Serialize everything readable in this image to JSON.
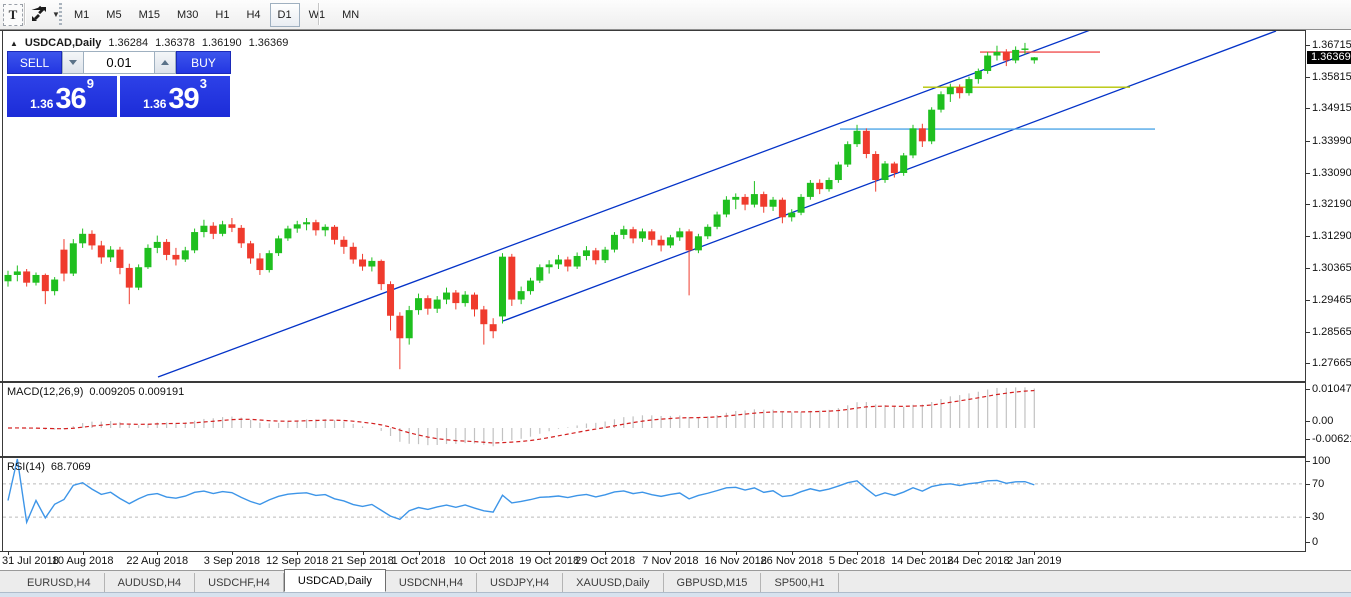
{
  "toolbar": {
    "text_tool_label": "T",
    "caret": "▼",
    "timeframes": [
      {
        "label": "M1",
        "active": false
      },
      {
        "label": "M5",
        "active": false
      },
      {
        "label": "M15",
        "active": false
      },
      {
        "label": "M30",
        "active": false
      },
      {
        "label": "H1",
        "active": false
      },
      {
        "label": "H4",
        "active": false
      },
      {
        "label": "D1",
        "active": true
      },
      {
        "label": "W1",
        "active": false
      },
      {
        "label": "MN",
        "active": false
      }
    ]
  },
  "header": {
    "collapse_icon": "▲",
    "symbol": "USDCAD,Daily",
    "open": "1.36284",
    "high": "1.36378",
    "low": "1.36190",
    "close": "1.36369"
  },
  "trade_panel": {
    "sell_label": "SELL",
    "buy_label": "BUY",
    "volume": "0.01",
    "sell_price": {
      "small": "1.36",
      "big": "36",
      "sup": "9"
    },
    "buy_price": {
      "small": "1.36",
      "big": "39",
      "sup": "3"
    }
  },
  "indicators": {
    "macd": {
      "label": "MACD(12,26,9)",
      "values": "0.009205 0.009191"
    },
    "rsi": {
      "label": "RSI(14)",
      "value": "68.7069"
    }
  },
  "price_axis": {
    "ticks": [
      "1.36715",
      "1.35815",
      "1.34915",
      "1.33990",
      "1.33090",
      "1.32190",
      "1.31290",
      "1.30365",
      "1.29465",
      "1.28565",
      "1.27665"
    ],
    "current": "1.36369"
  },
  "macd_axis": [
    "0.010474",
    "0.00",
    "-0.006218"
  ],
  "rsi_axis": [
    "100",
    "70",
    "30",
    "0"
  ],
  "date_axis": [
    "31 Jul 2018",
    "10 Aug 2018",
    "22 Aug 2018",
    "3 Sep 2018",
    "12 Sep 2018",
    "21 Sep 2018",
    "1 Oct 2018",
    "10 Oct 2018",
    "19 Oct 2018",
    "29 Oct 2018",
    "7 Nov 2018",
    "16 Nov 2018",
    "26 Nov 2018",
    "5 Dec 2018",
    "14 Dec 2018",
    "24 Dec 2018",
    "2 Jan 2019"
  ],
  "tabs": [
    {
      "label": "EURUSD,H4",
      "active": false
    },
    {
      "label": "AUDUSD,H4",
      "active": false
    },
    {
      "label": "USDCHF,H4",
      "active": false
    },
    {
      "label": "USDCAD,Daily",
      "active": true
    },
    {
      "label": "USDCNH,H4",
      "active": false
    },
    {
      "label": "USDJPY,H4",
      "active": false
    },
    {
      "label": "XAUUSD,Daily",
      "active": false
    },
    {
      "label": "GBPUSD,M15",
      "active": false
    },
    {
      "label": "SP500,H1",
      "active": false
    }
  ],
  "colors": {
    "bull": "#1fbf1f",
    "bear": "#ef3b2d",
    "trendline": "#0433c8",
    "hline_red": "#f05050",
    "hline_yellow": "#b5c400",
    "hline_cyan": "#4ea6e8",
    "macd_hist": "#c2c2c2",
    "macd_signal": "#d42020",
    "rsi_line": "#3d95e8",
    "grid_dash": "#bbbbbb"
  },
  "chart_data": {
    "type": "candlestick",
    "title": "USDCAD Daily",
    "ylabel": "price",
    "y_ticks": [
      1.36715,
      1.35815,
      1.34915,
      1.3399,
      1.3309,
      1.3219,
      1.3129,
      1.30365,
      1.29465,
      1.28565,
      1.27665
    ],
    "x_tick_labels": [
      "31 Jul 2018",
      "10 Aug 2018",
      "22 Aug 2018",
      "3 Sep 2018",
      "12 Sep 2018",
      "21 Sep 2018",
      "1 Oct 2018",
      "10 Oct 2018",
      "19 Oct 2018",
      "29 Oct 2018",
      "7 Nov 2018",
      "16 Nov 2018",
      "26 Nov 2018",
      "5 Dec 2018",
      "14 Dec 2018",
      "24 Dec 2018",
      "2 Jan 2019"
    ],
    "x_tick_indices": [
      0,
      8,
      16,
      24,
      31,
      38,
      44,
      51,
      58,
      64,
      71,
      78,
      84,
      91,
      98,
      104,
      110
    ],
    "last_close": 1.36369,
    "candles_ohlc": [
      [
        1.3,
        1.303,
        1.2985,
        1.3018
      ],
      [
        1.3018,
        1.3045,
        1.3,
        1.3028
      ],
      [
        1.3028,
        1.3035,
        1.2985,
        1.2996
      ],
      [
        1.2996,
        1.3025,
        1.2988,
        1.3018
      ],
      [
        1.3018,
        1.3022,
        1.2935,
        1.2972
      ],
      [
        1.2972,
        1.3012,
        1.296,
        1.3005
      ],
      [
        1.309,
        1.312,
        1.3,
        1.3022
      ],
      [
        1.3022,
        1.312,
        1.3015,
        1.3108
      ],
      [
        1.3108,
        1.315,
        1.3095,
        1.3135
      ],
      [
        1.3135,
        1.3145,
        1.309,
        1.3102
      ],
      [
        1.3102,
        1.3115,
        1.305,
        1.3068
      ],
      [
        1.3068,
        1.31,
        1.3055,
        1.309
      ],
      [
        1.309,
        1.3098,
        1.302,
        1.3038
      ],
      [
        1.3038,
        1.305,
        1.2935,
        1.2982
      ],
      [
        1.2982,
        1.3048,
        1.2975,
        1.304
      ],
      [
        1.304,
        1.3105,
        1.3035,
        1.3095
      ],
      [
        1.3095,
        1.313,
        1.308,
        1.3112
      ],
      [
        1.3112,
        1.312,
        1.306,
        1.3075
      ],
      [
        1.3075,
        1.3095,
        1.3045,
        1.3062
      ],
      [
        1.3062,
        1.3098,
        1.3055,
        1.3088
      ],
      [
        1.3088,
        1.315,
        1.308,
        1.314
      ],
      [
        1.314,
        1.3175,
        1.3125,
        1.3158
      ],
      [
        1.3158,
        1.3168,
        1.312,
        1.3135
      ],
      [
        1.3135,
        1.3172,
        1.3128,
        1.3162
      ],
      [
        1.3162,
        1.318,
        1.314,
        1.3152
      ],
      [
        1.3152,
        1.316,
        1.3095,
        1.3108
      ],
      [
        1.3108,
        1.3115,
        1.305,
        1.3065
      ],
      [
        1.3065,
        1.308,
        1.3018,
        1.3032
      ],
      [
        1.3032,
        1.3088,
        1.3025,
        1.308
      ],
      [
        1.308,
        1.313,
        1.3072,
        1.3122
      ],
      [
        1.3122,
        1.3158,
        1.3115,
        1.315
      ],
      [
        1.315,
        1.3172,
        1.3138,
        1.3162
      ],
      [
        1.3162,
        1.318,
        1.3145,
        1.3168
      ],
      [
        1.3168,
        1.3175,
        1.313,
        1.3145
      ],
      [
        1.3145,
        1.3162,
        1.3128,
        1.3155
      ],
      [
        1.3155,
        1.316,
        1.3105,
        1.3118
      ],
      [
        1.3118,
        1.3128,
        1.3078,
        1.3098
      ],
      [
        1.3098,
        1.311,
        1.305,
        1.3062
      ],
      [
        1.3062,
        1.3078,
        1.303,
        1.3042
      ],
      [
        1.3042,
        1.3068,
        1.3028,
        1.3058
      ],
      [
        1.3058,
        1.3062,
        1.2975,
        1.2992
      ],
      [
        1.2992,
        1.3,
        1.286,
        1.2902
      ],
      [
        1.2902,
        1.2912,
        1.275,
        1.2838
      ],
      [
        1.2838,
        1.293,
        1.282,
        1.2918
      ],
      [
        1.2918,
        1.2965,
        1.2905,
        1.2952
      ],
      [
        1.2952,
        1.296,
        1.2905,
        1.2922
      ],
      [
        1.2922,
        1.2958,
        1.291,
        1.2948
      ],
      [
        1.2948,
        1.2982,
        1.2935,
        1.2968
      ],
      [
        1.2968,
        1.2975,
        1.292,
        1.2938
      ],
      [
        1.2938,
        1.2972,
        1.2928,
        1.2962
      ],
      [
        1.2962,
        1.2968,
        1.29,
        1.292
      ],
      [
        1.292,
        1.293,
        1.282,
        1.2878
      ],
      [
        1.2878,
        1.2895,
        1.2838,
        1.2858
      ],
      [
        1.29,
        1.308,
        1.288,
        1.307
      ],
      [
        1.307,
        1.3078,
        1.293,
        1.2948
      ],
      [
        1.2948,
        1.2985,
        1.2935,
        1.2972
      ],
      [
        1.2972,
        1.301,
        1.2962,
        1.3002
      ],
      [
        1.3002,
        1.3048,
        1.2995,
        1.304
      ],
      [
        1.304,
        1.306,
        1.3022,
        1.3048
      ],
      [
        1.3048,
        1.3075,
        1.3035,
        1.3062
      ],
      [
        1.3062,
        1.307,
        1.3028,
        1.3042
      ],
      [
        1.3042,
        1.3082,
        1.3035,
        1.3072
      ],
      [
        1.3072,
        1.31,
        1.306,
        1.3088
      ],
      [
        1.3088,
        1.3095,
        1.3048,
        1.306
      ],
      [
        1.306,
        1.3098,
        1.3052,
        1.309
      ],
      [
        1.309,
        1.314,
        1.3082,
        1.3132
      ],
      [
        1.3132,
        1.3158,
        1.312,
        1.3148
      ],
      [
        1.3148,
        1.3155,
        1.3108,
        1.3122
      ],
      [
        1.3122,
        1.315,
        1.3112,
        1.3142
      ],
      [
        1.3142,
        1.3148,
        1.3102,
        1.3118
      ],
      [
        1.3118,
        1.313,
        1.3085,
        1.3102
      ],
      [
        1.3102,
        1.3132,
        1.3095,
        1.3125
      ],
      [
        1.3125,
        1.3152,
        1.3115,
        1.3142
      ],
      [
        1.3142,
        1.3148,
        1.296,
        1.3088
      ],
      [
        1.3088,
        1.3135,
        1.308,
        1.3128
      ],
      [
        1.3128,
        1.3162,
        1.312,
        1.3155
      ],
      [
        1.3155,
        1.3198,
        1.3148,
        1.319
      ],
      [
        1.319,
        1.3242,
        1.3182,
        1.3232
      ],
      [
        1.3232,
        1.325,
        1.3205,
        1.324
      ],
      [
        1.324,
        1.3248,
        1.3202,
        1.3218
      ],
      [
        1.3218,
        1.3285,
        1.321,
        1.3248
      ],
      [
        1.3248,
        1.3255,
        1.3195,
        1.3212
      ],
      [
        1.3212,
        1.324,
        1.32,
        1.3232
      ],
      [
        1.3232,
        1.3238,
        1.3165,
        1.3182
      ],
      [
        1.3182,
        1.3205,
        1.317,
        1.3195
      ],
      [
        1.3195,
        1.3248,
        1.3188,
        1.324
      ],
      [
        1.324,
        1.3288,
        1.3232,
        1.328
      ],
      [
        1.328,
        1.329,
        1.3248,
        1.3262
      ],
      [
        1.3262,
        1.3295,
        1.3255,
        1.3288
      ],
      [
        1.3288,
        1.334,
        1.328,
        1.3332
      ],
      [
        1.3332,
        1.3398,
        1.3325,
        1.339
      ],
      [
        1.339,
        1.3445,
        1.3382,
        1.3428
      ],
      [
        1.3428,
        1.3435,
        1.335,
        1.3362
      ],
      [
        1.3362,
        1.337,
        1.3255,
        1.3288
      ],
      [
        1.3288,
        1.3342,
        1.328,
        1.3335
      ],
      [
        1.3335,
        1.334,
        1.3295,
        1.3308
      ],
      [
        1.3308,
        1.3365,
        1.33,
        1.3358
      ],
      [
        1.3358,
        1.3445,
        1.335,
        1.3435
      ],
      [
        1.3435,
        1.3448,
        1.3382,
        1.3398
      ],
      [
        1.3398,
        1.3495,
        1.339,
        1.3488
      ],
      [
        1.3488,
        1.354,
        1.348,
        1.3532
      ],
      [
        1.3532,
        1.3562,
        1.351,
        1.3552
      ],
      [
        1.3552,
        1.356,
        1.352,
        1.3535
      ],
      [
        1.3535,
        1.3582,
        1.3528,
        1.3575
      ],
      [
        1.3575,
        1.3605,
        1.3562,
        1.3598
      ],
      [
        1.3598,
        1.3652,
        1.359,
        1.3642
      ],
      [
        1.3642,
        1.367,
        1.3628,
        1.3652
      ],
      [
        1.3652,
        1.366,
        1.3612,
        1.3628
      ],
      [
        1.3628,
        1.3668,
        1.362,
        1.3658
      ],
      [
        1.3658,
        1.3678,
        1.3645,
        1.3662
      ],
      [
        1.36284,
        1.36378,
        1.3619,
        1.36369
      ]
    ],
    "objects": {
      "trendlines": [
        {
          "name": "channel-upper",
          "x1": 155,
          "y1": 346,
          "x2": 1090,
          "y2": -2
        },
        {
          "name": "channel-lower",
          "x1": 500,
          "y1": 290,
          "x2": 1273,
          "y2": 0
        }
      ],
      "hlines": [
        {
          "name": "resistance-red",
          "price": 1.3652,
          "x1": 977,
          "x2": 1097,
          "color_key": "hline_red"
        },
        {
          "name": "level-yellow",
          "price": 1.3552,
          "x1": 920,
          "x2": 1127,
          "color_key": "hline_yellow"
        },
        {
          "name": "level-cyan",
          "price": 1.3433,
          "x1": 837,
          "x2": 1152,
          "color_key": "hline_cyan"
        }
      ]
    },
    "sub_indicators": {
      "macd": {
        "fast": 12,
        "slow": 26,
        "signal": 9,
        "axis_max": 0.010474,
        "axis_min": -0.006218,
        "current": [
          0.009205,
          0.009191
        ]
      },
      "rsi": {
        "period": 14,
        "levels": [
          70,
          30
        ],
        "current": 68.7069
      }
    }
  }
}
